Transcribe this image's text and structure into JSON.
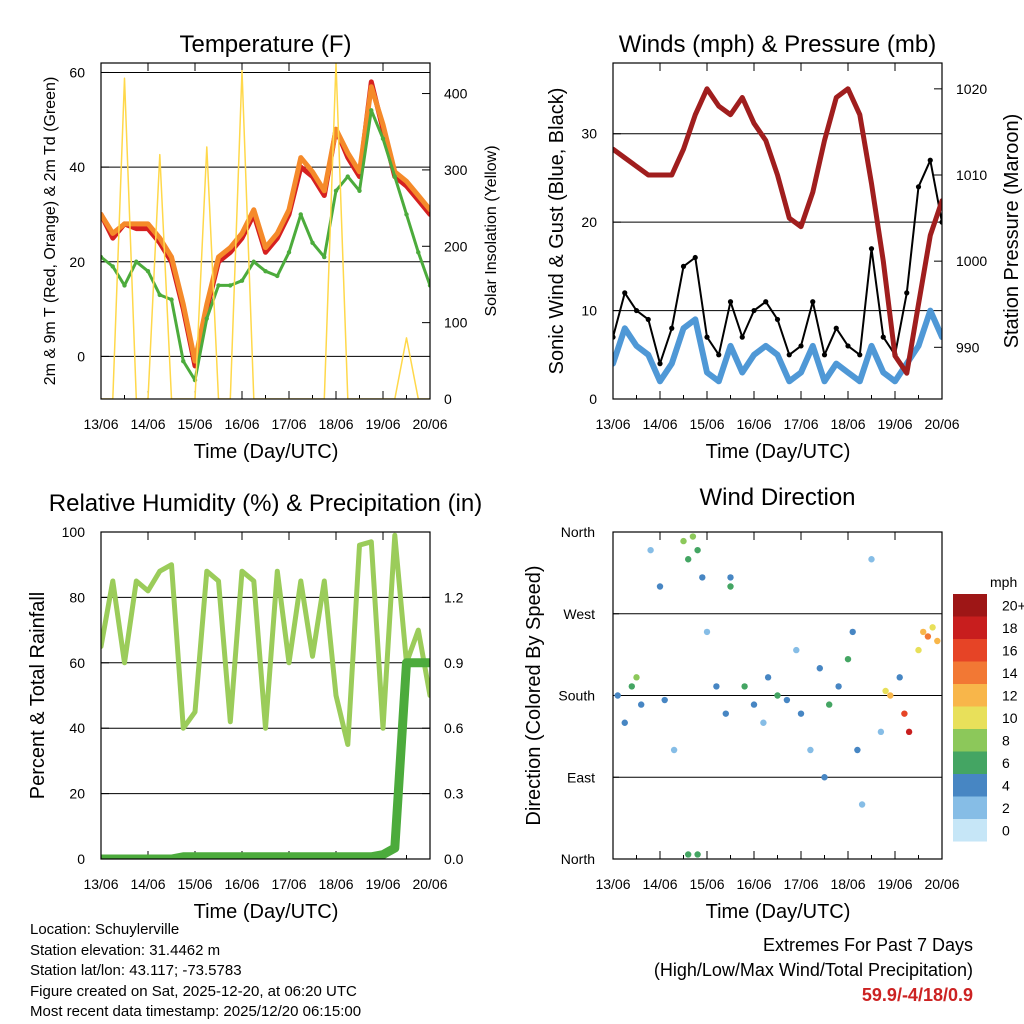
{
  "chart_data": [
    {
      "id": "temperature",
      "type": "line",
      "title": "Temperature (F)",
      "xlabel": "Time (Day/UTC)",
      "ylabel": "2m & 9m T (Red, Orange) & 2m Td (Green)",
      "ylabel_right": "Solar Insolation (Yellow)",
      "x_ticks": [
        "13/06",
        "14/06",
        "15/06",
        "16/06",
        "17/06",
        "18/06",
        "19/06",
        "20/06"
      ],
      "ylim": [
        -9,
        62
      ],
      "y_ticks": [
        0,
        20,
        40,
        60
      ],
      "gridlines": [
        0,
        20,
        40,
        60
      ],
      "ylim_right": [
        0,
        440
      ],
      "y2_ticks": [
        0,
        100,
        200,
        300,
        400
      ],
      "x": [
        0,
        0.25,
        0.5,
        0.75,
        1.0,
        1.25,
        1.5,
        1.75,
        2.0,
        2.25,
        2.5,
        2.75,
        3.0,
        3.25,
        3.5,
        3.75,
        4.0,
        4.25,
        4.5,
        4.75,
        5.0,
        5.25,
        5.5,
        5.75,
        6.0,
        6.25,
        6.5,
        6.75,
        7.0
      ],
      "series": [
        {
          "name": "2m T",
          "color": "#d62020",
          "values": [
            30,
            25,
            28,
            27,
            27,
            24,
            20,
            10,
            -2,
            10,
            20,
            22,
            25,
            30,
            22,
            25,
            30,
            40,
            38,
            34,
            48,
            42,
            38,
            58,
            48,
            38,
            36,
            33,
            30
          ]
        },
        {
          "name": "9m T",
          "color": "#f58a2a",
          "values": [
            30,
            26,
            28,
            28,
            28,
            25,
            21,
            11,
            -1,
            11,
            21,
            23,
            26,
            31,
            23,
            26,
            31,
            42,
            39,
            35,
            48,
            43,
            39,
            57,
            49,
            39,
            37,
            34,
            31
          ]
        },
        {
          "name": "2m Td",
          "color": "#4cab3c",
          "values": [
            21,
            19,
            15,
            20,
            18,
            13,
            12,
            -1,
            -5,
            8,
            15,
            15,
            16,
            20,
            18,
            17,
            22,
            30,
            24,
            21,
            35,
            38,
            35,
            52,
            46,
            38,
            30,
            22,
            15
          ]
        },
        {
          "name": "Solar Insolation",
          "color": "#ffd84a",
          "axis": "right",
          "values": [
            0,
            0,
            420,
            0,
            0,
            320,
            0,
            0,
            0,
            330,
            0,
            0,
            430,
            0,
            0,
            0,
            0,
            0,
            0,
            0,
            440,
            0,
            0,
            0,
            0,
            0,
            80,
            0,
            0
          ]
        }
      ]
    },
    {
      "id": "winds",
      "type": "line",
      "title": "Winds (mph) & Pressure (mb)",
      "xlabel": "Time (Day/UTC)",
      "ylabel": "Sonic Wind & Gust (Blue, Black)",
      "ylabel_right": "Station Pressure (Maroon)",
      "x_ticks": [
        "13/06",
        "14/06",
        "15/06",
        "16/06",
        "17/06",
        "18/06",
        "19/06",
        "20/06"
      ],
      "ylim": [
        0,
        38
      ],
      "y_ticks": [
        0,
        10,
        20,
        30
      ],
      "gridlines": [
        10,
        20,
        30
      ],
      "ylim_right": [
        984,
        1023
      ],
      "y2_ticks": [
        990,
        1000,
        1010,
        1020
      ],
      "x": [
        0,
        0.25,
        0.5,
        0.75,
        1.0,
        1.25,
        1.5,
        1.75,
        2.0,
        2.25,
        2.5,
        2.75,
        3.0,
        3.25,
        3.5,
        3.75,
        4.0,
        4.25,
        4.5,
        4.75,
        5.0,
        5.25,
        5.5,
        5.75,
        6.0,
        6.25,
        6.5,
        6.75,
        7.0
      ],
      "series": [
        {
          "name": "Sonic Wind",
          "color": "#4f98d6",
          "values": [
            4,
            8,
            6,
            5,
            2,
            4,
            8,
            9,
            3,
            2,
            6,
            3,
            5,
            6,
            5,
            2,
            3,
            6,
            2,
            4,
            3,
            2,
            6,
            3,
            2,
            4,
            6,
            10,
            7
          ]
        },
        {
          "name": "Gust",
          "color": "#000000",
          "values": [
            7,
            12,
            10,
            9,
            4,
            8,
            15,
            16,
            7,
            5,
            11,
            7,
            10,
            11,
            9,
            5,
            6,
            11,
            5,
            8,
            6,
            5,
            17,
            7,
            5,
            12,
            24,
            27,
            20
          ]
        },
        {
          "name": "Station Pressure",
          "color": "#a01e1e",
          "axis": "right",
          "values": [
            1013,
            1012,
            1011,
            1010,
            1010,
            1010,
            1013,
            1017,
            1020,
            1018,
            1017,
            1019,
            1016,
            1014,
            1010,
            1005,
            1004,
            1008,
            1014,
            1019,
            1020,
            1017,
            1009,
            1000,
            989,
            987,
            995,
            1003,
            1007
          ]
        }
      ]
    },
    {
      "id": "humidity",
      "type": "line",
      "title": "Relative Humidity (%) & Precipitation (in)",
      "xlabel": "Time (Day/UTC)",
      "ylabel": "Percent & Total Rainfall",
      "x_ticks": [
        "13/06",
        "14/06",
        "15/06",
        "16/06",
        "17/06",
        "18/06",
        "19/06",
        "20/06"
      ],
      "ylim": [
        0,
        100
      ],
      "y_ticks": [
        0,
        20,
        40,
        60,
        80,
        100
      ],
      "gridlines": [
        20,
        40,
        60,
        80
      ],
      "ylim_right": [
        0,
        1.5
      ],
      "y2_ticks": [
        0.0,
        0.3,
        0.6,
        0.9,
        1.2
      ],
      "x": [
        0,
        0.25,
        0.5,
        0.75,
        1.0,
        1.25,
        1.5,
        1.75,
        2.0,
        2.25,
        2.5,
        2.75,
        3.0,
        3.25,
        3.5,
        3.75,
        4.0,
        4.25,
        4.5,
        4.75,
        5.0,
        5.25,
        5.5,
        5.75,
        6.0,
        6.25,
        6.5,
        6.75,
        7.0
      ],
      "series": [
        {
          "name": "Relative Humidity",
          "color": "#9bcc5a",
          "values": [
            65,
            85,
            60,
            85,
            82,
            88,
            90,
            40,
            45,
            88,
            85,
            42,
            88,
            85,
            40,
            88,
            60,
            85,
            62,
            85,
            50,
            35,
            96,
            97,
            40,
            99,
            60,
            70,
            50
          ]
        },
        {
          "name": "Total Precipitation",
          "color": "#4cab3c",
          "axis": "right",
          "values": [
            0,
            0,
            0,
            0,
            0,
            0,
            0,
            0.01,
            0.01,
            0.01,
            0.01,
            0.01,
            0.01,
            0.01,
            0.01,
            0.01,
            0.01,
            0.01,
            0.01,
            0.01,
            0.01,
            0.01,
            0.01,
            0.01,
            0.02,
            0.05,
            0.9,
            0.9,
            0.9
          ]
        }
      ]
    },
    {
      "id": "wind_direction",
      "type": "scatter",
      "title": "Wind Direction",
      "xlabel": "Time (Day/UTC)",
      "ylabel": "Direction (Colored By Speed)",
      "x_ticks": [
        "13/06",
        "14/06",
        "15/06",
        "16/06",
        "17/06",
        "18/06",
        "19/06",
        "20/06"
      ],
      "ylim": [
        0,
        360
      ],
      "y_ticks": [
        "North",
        "East",
        "South",
        "West",
        "North"
      ],
      "y_tick_values": [
        0,
        90,
        180,
        270,
        360
      ],
      "gridlines": [
        90,
        180,
        270
      ],
      "colorbar_title": "mph",
      "colorbar_labels": [
        "0",
        "2",
        "4",
        "6",
        "8",
        "10",
        "12",
        "14",
        "16",
        "18",
        "20+"
      ],
      "colorbar_colors": [
        "#c6e6f7",
        "#86bde6",
        "#4786c3",
        "#44a563",
        "#8cc85a",
        "#e8e05a",
        "#f8b64a",
        "#f27834",
        "#e64426",
        "#c81e1e",
        "#9e1616"
      ],
      "points": [
        {
          "x": 0.1,
          "y": 180,
          "s": 3
        },
        {
          "x": 0.25,
          "y": 150,
          "s": 4
        },
        {
          "x": 0.4,
          "y": 190,
          "s": 5
        },
        {
          "x": 0.5,
          "y": 200,
          "s": 7
        },
        {
          "x": 0.6,
          "y": 170,
          "s": 4
        },
        {
          "x": 0.8,
          "y": 340,
          "s": 2
        },
        {
          "x": 1.0,
          "y": 300,
          "s": 3
        },
        {
          "x": 1.1,
          "y": 175,
          "s": 4
        },
        {
          "x": 1.3,
          "y": 120,
          "s": 2
        },
        {
          "x": 1.5,
          "y": 350,
          "s": 7
        },
        {
          "x": 1.6,
          "y": 330,
          "s": 6
        },
        {
          "x": 1.7,
          "y": 355,
          "s": 8
        },
        {
          "x": 1.8,
          "y": 340,
          "s": 5
        },
        {
          "x": 1.9,
          "y": 310,
          "s": 3
        },
        {
          "x": 2.0,
          "y": 250,
          "s": 2
        },
        {
          "x": 2.2,
          "y": 190,
          "s": 4
        },
        {
          "x": 2.4,
          "y": 160,
          "s": 3
        },
        {
          "x": 2.5,
          "y": 300,
          "s": 6
        },
        {
          "x": 2.8,
          "y": 190,
          "s": 5
        },
        {
          "x": 3.0,
          "y": 170,
          "s": 4
        },
        {
          "x": 3.3,
          "y": 200,
          "s": 3
        },
        {
          "x": 3.5,
          "y": 180,
          "s": 6
        },
        {
          "x": 3.7,
          "y": 175,
          "s": 4
        },
        {
          "x": 3.9,
          "y": 230,
          "s": 2
        },
        {
          "x": 4.0,
          "y": 160,
          "s": 3
        },
        {
          "x": 4.2,
          "y": 120,
          "s": 2
        },
        {
          "x": 4.4,
          "y": 210,
          "s": 4
        },
        {
          "x": 4.6,
          "y": 170,
          "s": 6
        },
        {
          "x": 4.8,
          "y": 190,
          "s": 3
        },
        {
          "x": 5.0,
          "y": 220,
          "s": 5
        },
        {
          "x": 5.1,
          "y": 250,
          "s": 4
        },
        {
          "x": 5.3,
          "y": 60,
          "s": 2
        },
        {
          "x": 5.5,
          "y": 330,
          "s": 1
        },
        {
          "x": 5.7,
          "y": 140,
          "s": 2
        },
        {
          "x": 5.8,
          "y": 185,
          "s": 9
        },
        {
          "x": 5.9,
          "y": 180,
          "s": 11
        },
        {
          "x": 6.1,
          "y": 200,
          "s": 4
        },
        {
          "x": 6.2,
          "y": 160,
          "s": 16
        },
        {
          "x": 6.3,
          "y": 140,
          "s": 18
        },
        {
          "x": 6.5,
          "y": 230,
          "s": 9
        },
        {
          "x": 6.6,
          "y": 250,
          "s": 12
        },
        {
          "x": 6.7,
          "y": 245,
          "s": 14
        },
        {
          "x": 6.8,
          "y": 255,
          "s": 10
        },
        {
          "x": 6.9,
          "y": 240,
          "s": 11
        },
        {
          "x": 1.6,
          "y": 5,
          "s": 6
        },
        {
          "x": 1.8,
          "y": 5,
          "s": 6
        },
        {
          "x": 2.5,
          "y": 310,
          "s": 3
        },
        {
          "x": 3.2,
          "y": 150,
          "s": 2
        },
        {
          "x": 4.5,
          "y": 90,
          "s": 3
        },
        {
          "x": 5.2,
          "y": 120,
          "s": 4
        }
      ]
    }
  ],
  "footer": {
    "location": "Location: Schuylerville",
    "elevation": "Station elevation: 31.4462 m",
    "latlon": "Station lat/lon: 43.117; -73.5783",
    "created": "Figure created on Sat, 2025-12-20, at 06:20 UTC",
    "recent": "Most recent data timestamp: 2025/12/20 06:15:00"
  },
  "extremes": {
    "line1": "Extremes For Past 7 Days",
    "line2": "(High/Low/Max Wind/Total Precipitation)",
    "values": "59.9/-4/18/0.9"
  }
}
